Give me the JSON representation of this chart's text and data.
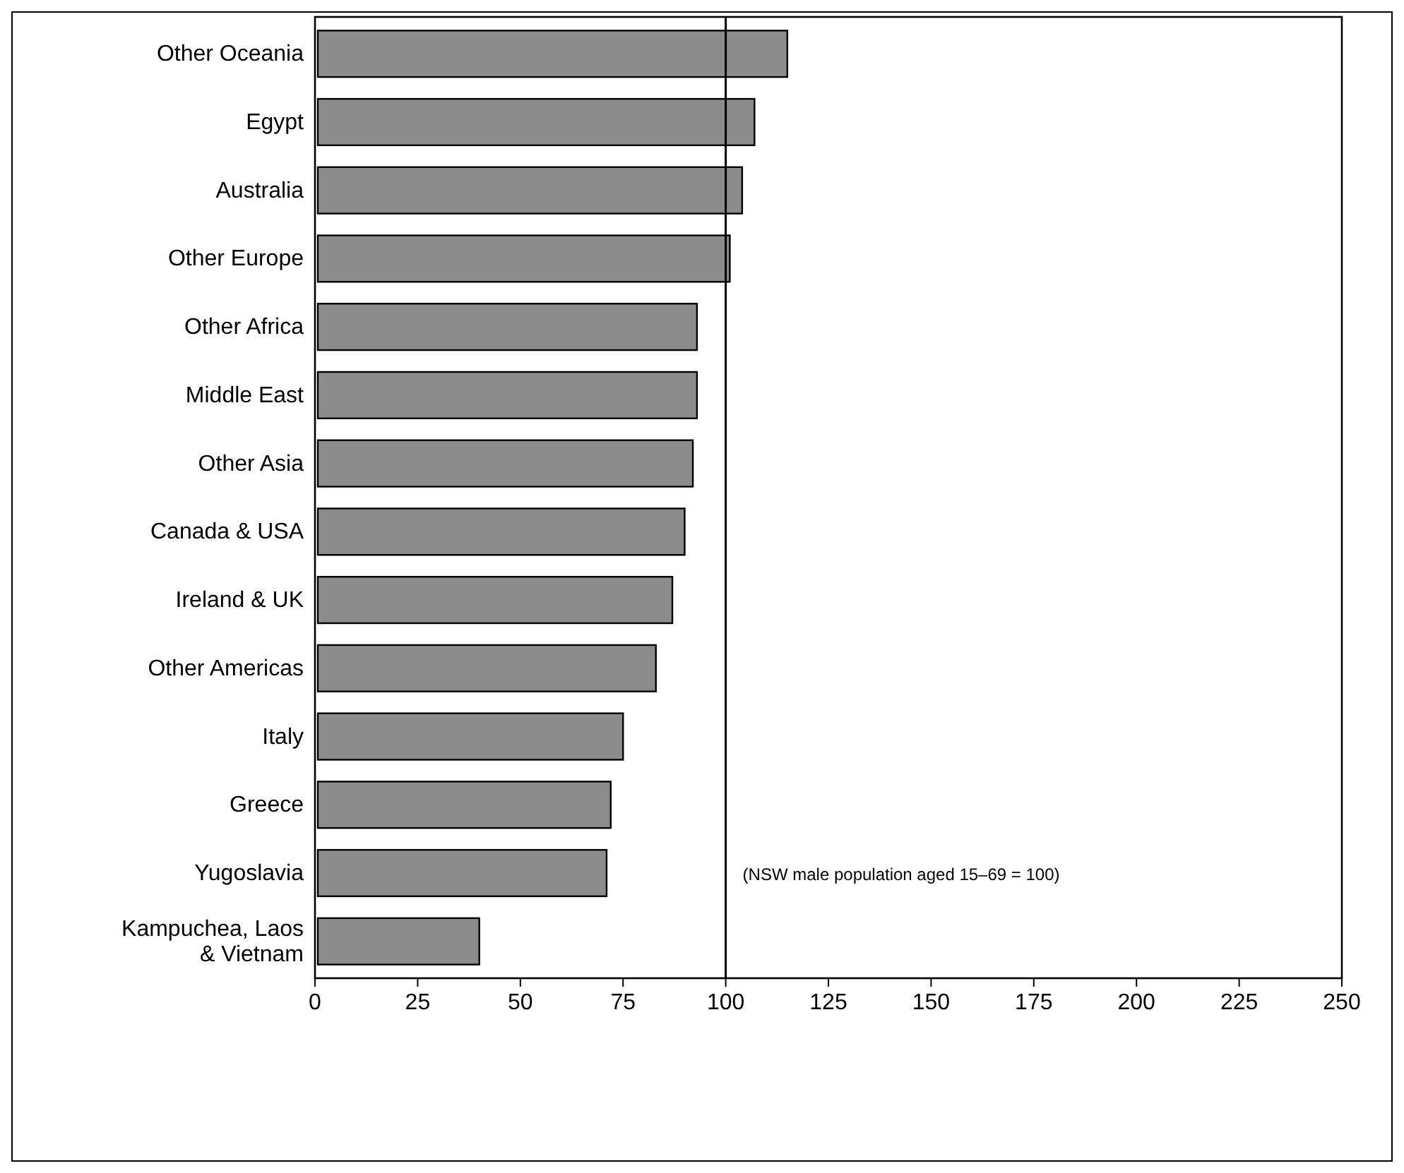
{
  "chart_data": {
    "type": "bar",
    "orientation": "horizontal",
    "categories": [
      "Other Oceania",
      "Egypt",
      "Australia",
      "Other Europe",
      "Other Africa",
      "Middle East",
      "Other Asia",
      "Canada & USA",
      "Ireland & UK",
      "Other Americas",
      "Italy",
      "Greece",
      "Yugoslavia",
      "Kampuchea, Laos\n& Vietnam"
    ],
    "values": [
      115,
      107,
      104,
      101,
      93,
      93,
      92,
      90,
      87,
      83,
      75,
      72,
      71,
      40
    ],
    "color": "#8c8c8c",
    "xlim": [
      0,
      250
    ],
    "xticks": [
      0,
      25,
      50,
      75,
      100,
      125,
      150,
      175,
      200,
      225,
      250
    ],
    "ref_lines": [
      {
        "axis": "x",
        "value": 100
      }
    ],
    "annotations": [
      "(NSW male population aged 15–69 = 100)"
    ]
  }
}
